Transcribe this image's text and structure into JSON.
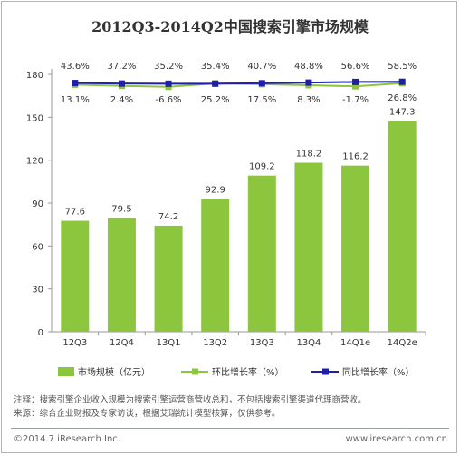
{
  "chart_data": {
    "type": "bar",
    "title": "2012Q3-2014Q2中国搜索引擎市场规模",
    "categories": [
      "12Q3",
      "12Q4",
      "13Q1",
      "13Q2",
      "13Q3",
      "13Q4",
      "14Q1e",
      "14Q2e"
    ],
    "ylim": [
      0,
      180
    ],
    "yticks": [
      0,
      30,
      60,
      90,
      120,
      150,
      180
    ],
    "grid": false,
    "legend_position": "bottom",
    "series": [
      {
        "name": "市场规模（亿元）",
        "type": "bar",
        "color": "#8cc63f",
        "values": [
          77.6,
          79.5,
          74.2,
          92.9,
          109.2,
          118.2,
          116.2,
          147.3
        ],
        "labels": [
          "77.6",
          "79.5",
          "74.2",
          "92.9",
          "109.2",
          "118.2",
          "116.2",
          "147.3"
        ]
      },
      {
        "name": "环比增长率（%）",
        "type": "line",
        "color": "#8cc63f",
        "values": [
          13.1,
          2.4,
          -6.6,
          25.2,
          17.5,
          8.3,
          -1.7,
          26.8
        ],
        "labels": [
          "13.1%",
          "2.4%",
          "-6.6%",
          "25.2%",
          "17.5%",
          "8.3%",
          "-1.7%",
          "26.8%"
        ]
      },
      {
        "name": "同比增长率（%）",
        "type": "line",
        "color": "#1f1fa8",
        "values": [
          43.6,
          37.2,
          35.2,
          35.4,
          40.7,
          48.8,
          56.6,
          58.5
        ],
        "labels": [
          "43.6%",
          "37.2%",
          "35.2%",
          "35.4%",
          "40.7%",
          "48.8%",
          "56.6%",
          "58.5%"
        ]
      }
    ]
  },
  "notes": {
    "line1": "注释：搜索引擎企业收入规模为搜索引擎运营商营收总和，不包括搜索引擎渠道代理商营收。",
    "line2": "来源：综合企业财报及专家访谈，根据艾瑞统计模型核算，仅供参考。"
  },
  "footer": {
    "copyright": "©2014.7 iResearch Inc.",
    "website": "www.iresearch.com.cn"
  }
}
